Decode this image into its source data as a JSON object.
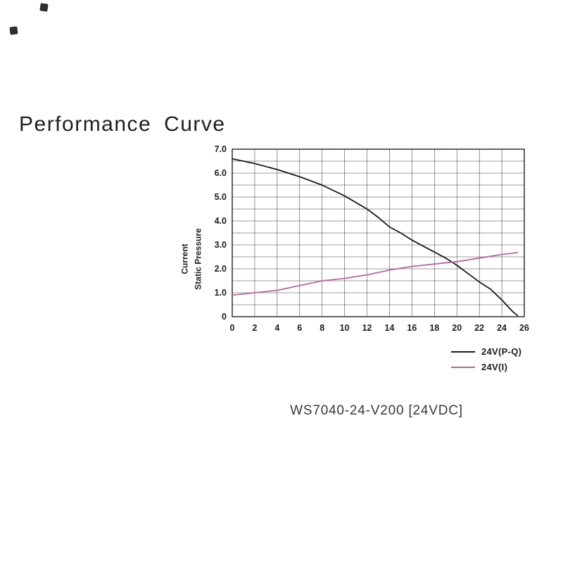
{
  "page": {
    "title": "Performance Curve",
    "caption": "WS7040-24-V200  [24VDC]"
  },
  "axis": {
    "y_title_line1": "Current",
    "y_title_line2": "Static Pressure"
  },
  "legend": [
    {
      "label": "24V(P-Q)",
      "color": "#1a1a1a"
    },
    {
      "label": "24V(I)",
      "color": "#b565a7"
    }
  ],
  "chart_data": {
    "type": "line",
    "title": "Performance Curve",
    "xlabel": "",
    "ylabel": "Current / Static Pressure",
    "xlim": [
      0,
      26
    ],
    "ylim": [
      0,
      7
    ],
    "x_ticks": [
      0,
      2,
      4,
      6,
      8,
      10,
      12,
      14,
      16,
      18,
      20,
      22,
      24,
      26
    ],
    "y_ticks": [
      0,
      1,
      2,
      3,
      4,
      5,
      6,
      7
    ],
    "y_tick_labels": [
      "0",
      "1.0",
      "2.0",
      "3.0",
      "4.0",
      "5.0",
      "6.0",
      "7.0"
    ],
    "grid": {
      "visible": true,
      "x_step": 2,
      "y_step": 0.5
    },
    "legend_position": "below-right-outside",
    "series": [
      {
        "name": "24V(P-Q)",
        "color": "#1a1a1a",
        "x": [
          0,
          2,
          4,
          6,
          8,
          10,
          12,
          13,
          14,
          15,
          16,
          17,
          18,
          19,
          20,
          21,
          22,
          23,
          24,
          25,
          25.4
        ],
        "y": [
          6.6,
          6.4,
          6.15,
          5.85,
          5.5,
          5.05,
          4.5,
          4.15,
          3.75,
          3.5,
          3.2,
          2.95,
          2.7,
          2.45,
          2.15,
          1.8,
          1.45,
          1.15,
          0.7,
          0.2,
          0.05
        ]
      },
      {
        "name": "24V(I)",
        "color": "#b565a7",
        "x": [
          0,
          2,
          4,
          6,
          8,
          10,
          12,
          14,
          16,
          18,
          20,
          22,
          24,
          25.4
        ],
        "y": [
          0.9,
          1.0,
          1.1,
          1.3,
          1.5,
          1.6,
          1.75,
          1.95,
          2.1,
          2.2,
          2.3,
          2.45,
          2.6,
          2.68
        ]
      }
    ]
  }
}
